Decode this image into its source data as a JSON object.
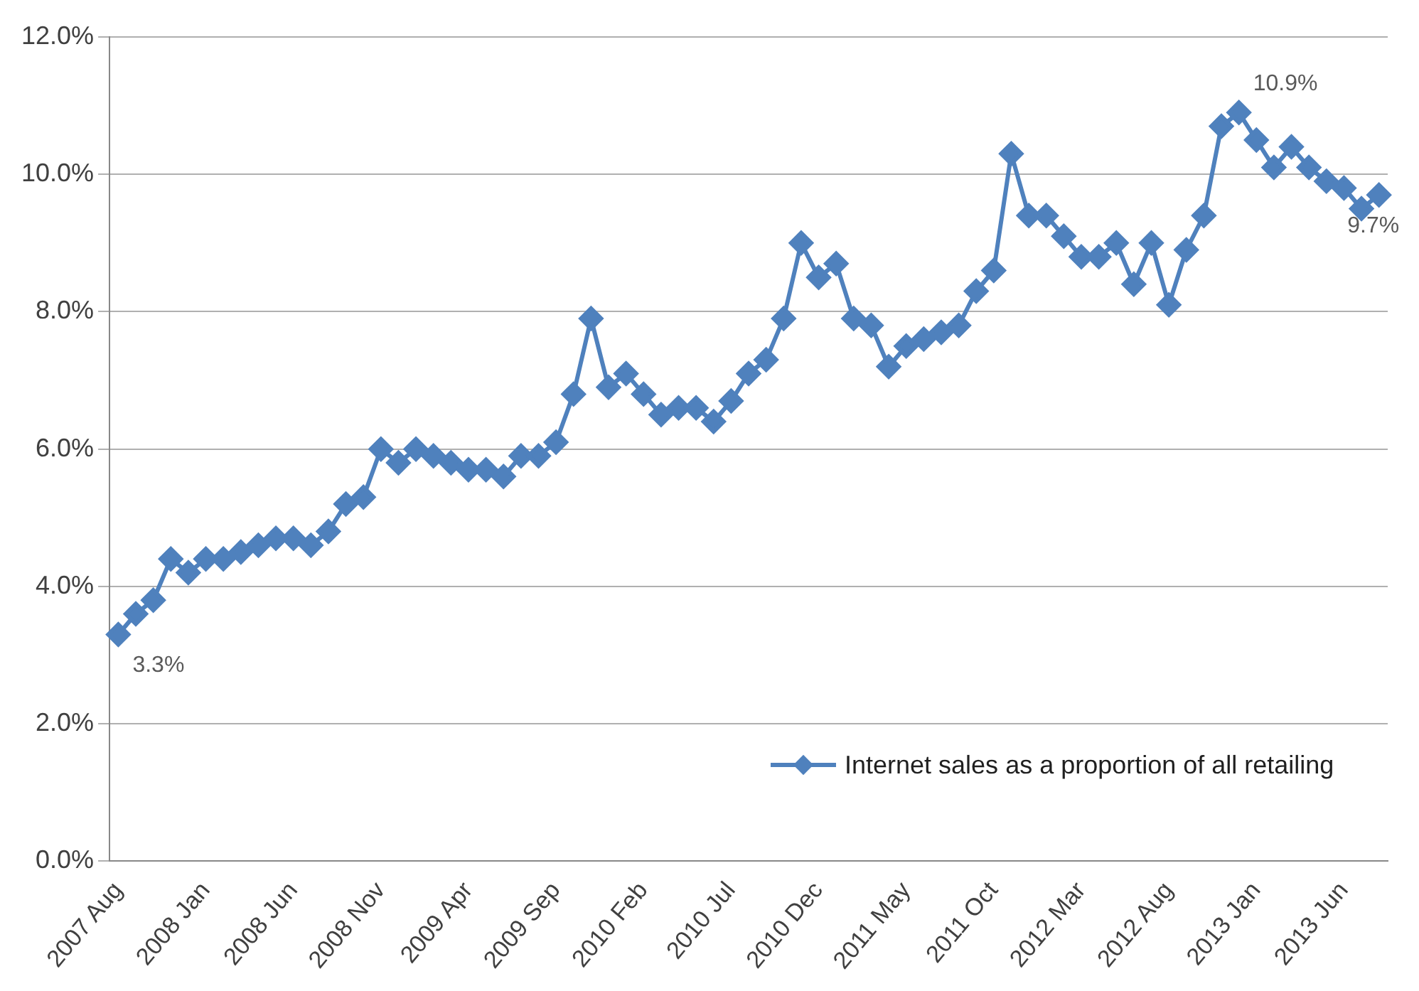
{
  "chart_data": {
    "type": "line",
    "categories": [
      "2007 Aug",
      null,
      null,
      null,
      null,
      "2008 Jan",
      null,
      null,
      null,
      null,
      "2008 Jun",
      null,
      null,
      null,
      null,
      "2008 Nov",
      null,
      null,
      null,
      null,
      "2009 Apr",
      null,
      null,
      null,
      null,
      "2009 Sep",
      null,
      null,
      null,
      null,
      "2010 Feb",
      null,
      null,
      null,
      null,
      "2010 Jul",
      null,
      null,
      null,
      null,
      "2010 Dec",
      null,
      null,
      null,
      null,
      "2011 May",
      null,
      null,
      null,
      null,
      "2011 Oct",
      null,
      null,
      null,
      null,
      "2012 Mar",
      null,
      null,
      null,
      null,
      "2012 Aug",
      null,
      null,
      null,
      null,
      "2013 Jan",
      null,
      null,
      null,
      null,
      "2013 Jun",
      null,
      null
    ],
    "series": [
      {
        "name": "Internet sales as a proportion of all retailing",
        "color": "#4f81bd",
        "values": [
          3.3,
          3.6,
          3.8,
          4.4,
          4.2,
          4.4,
          4.4,
          4.5,
          4.6,
          4.7,
          4.7,
          4.6,
          4.8,
          5.2,
          5.3,
          6.0,
          5.8,
          6.0,
          5.9,
          5.8,
          5.7,
          5.7,
          5.6,
          5.9,
          5.9,
          6.1,
          6.8,
          7.9,
          6.9,
          7.1,
          6.8,
          6.5,
          6.6,
          6.6,
          6.4,
          6.7,
          7.1,
          7.3,
          7.9,
          9.0,
          8.5,
          8.7,
          7.9,
          7.8,
          7.2,
          7.5,
          7.6,
          7.7,
          7.8,
          8.3,
          8.6,
          10.3,
          9.4,
          9.4,
          9.1,
          8.8,
          8.8,
          9.0,
          8.4,
          9.0,
          8.1,
          8.9,
          9.4,
          10.7,
          10.9,
          10.5,
          10.1,
          10.4,
          10.1,
          9.9,
          9.8,
          9.5,
          9.7
        ],
        "value_labels": [
          "3.3%",
          null,
          null,
          null,
          null,
          null,
          null,
          null,
          null,
          null,
          null,
          null,
          null,
          null,
          null,
          null,
          null,
          null,
          null,
          null,
          null,
          null,
          null,
          null,
          null,
          null,
          null,
          null,
          null,
          null,
          null,
          null,
          null,
          null,
          null,
          null,
          null,
          null,
          null,
          null,
          null,
          null,
          null,
          null,
          null,
          null,
          null,
          null,
          null,
          null,
          null,
          null,
          null,
          null,
          null,
          null,
          null,
          null,
          null,
          null,
          null,
          null,
          null,
          null,
          "10.9%",
          null,
          null,
          null,
          null,
          null,
          null,
          null,
          "9.7%"
        ]
      }
    ],
    "ylim": [
      0,
      12
    ],
    "yticks": [
      {
        "value": 0,
        "label": "0.0%"
      },
      {
        "value": 2,
        "label": "2.0%"
      },
      {
        "value": 4,
        "label": "4.0%"
      },
      {
        "value": 6,
        "label": "6.0%"
      },
      {
        "value": 8,
        "label": "8.0%"
      },
      {
        "value": 10,
        "label": "10.0%"
      },
      {
        "value": 12,
        "label": "12.0%"
      }
    ],
    "grid": "y",
    "legend": "bottom right",
    "marker": "diamond",
    "line_style": "solid"
  }
}
